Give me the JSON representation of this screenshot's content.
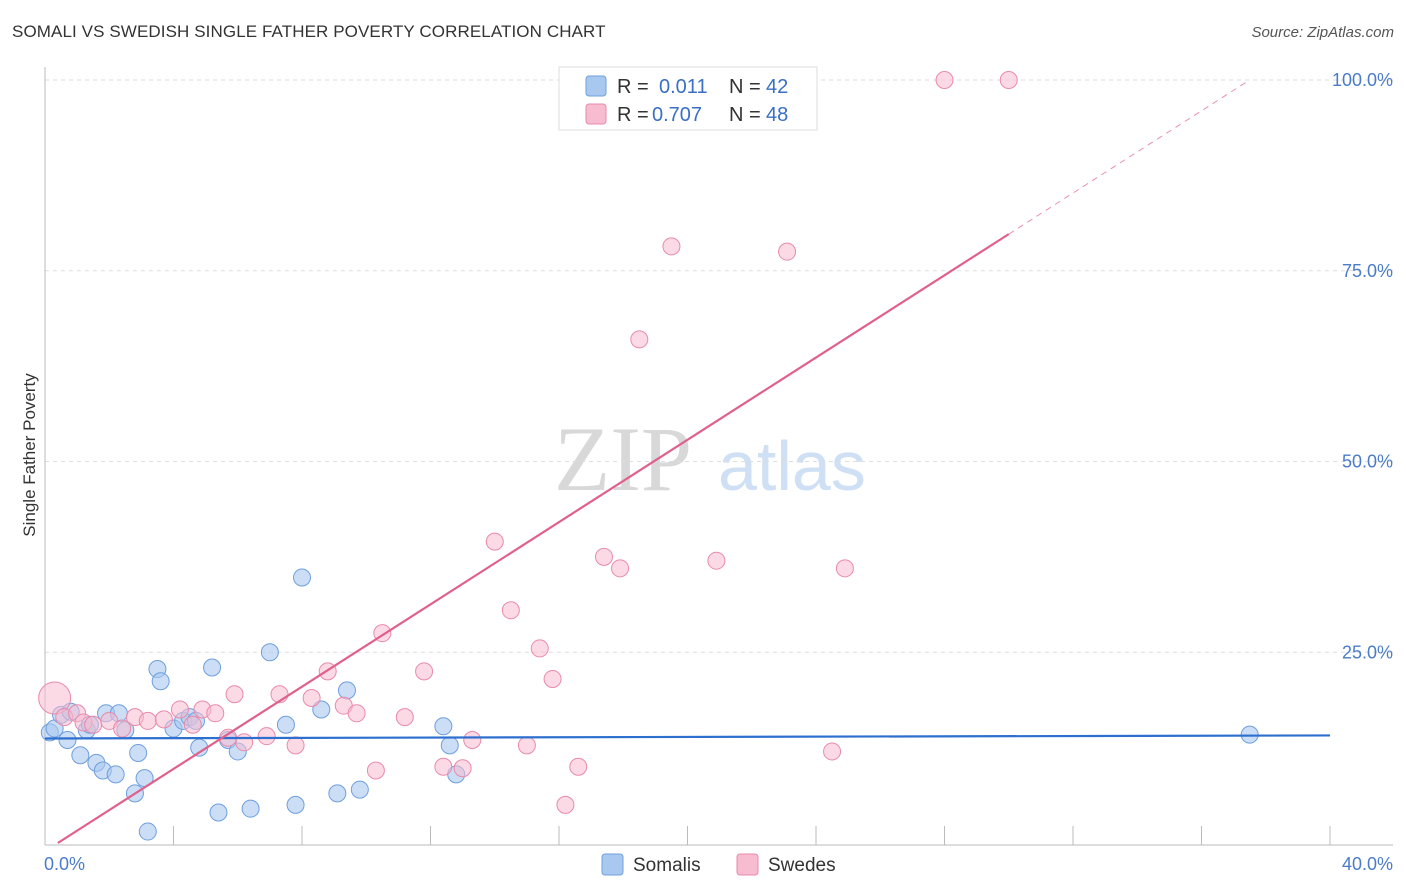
{
  "title": "SOMALI VS SWEDISH SINGLE FATHER POVERTY CORRELATION CHART",
  "source": "Source: ZipAtlas.com",
  "watermark": {
    "zip": "ZIP",
    "atlas": "atlas"
  },
  "colors": {
    "somali_fill": "#a9c8f0",
    "somali_stroke": "#6f9fde",
    "somali_line": "#2c6fcf",
    "swede_fill": "#f7bcd0",
    "swede_stroke": "#e98aab",
    "swede_line": "#e0608c",
    "axis_label": "#4a7cc9",
    "grid": "#dddddd"
  },
  "legend": {
    "somalis": {
      "r_label": "R =",
      "r_value": "0.011",
      "n_label": "N =",
      "n_value": "42"
    },
    "swedes": {
      "r_label": "R =",
      "r_value": "0.707",
      "n_label": "N =",
      "n_value": "48"
    }
  },
  "bottom_legend": {
    "somalis": "Somalis",
    "swedes": "Swedes"
  },
  "chart_data": {
    "type": "scatter",
    "title": "SOMALI VS SWEDISH SINGLE FATHER POVERTY CORRELATION CHART",
    "xlabel": "",
    "ylabel": "Single Father Poverty",
    "xlim": [
      0,
      40
    ],
    "ylim": [
      0,
      100
    ],
    "x_tick_labels": [
      "0.0%",
      "40.0%"
    ],
    "y_ticks": [
      25,
      50,
      75,
      100
    ],
    "y_tick_labels": [
      "25.0%",
      "50.0%",
      "75.0%",
      "100.0%"
    ],
    "legend_position": "top-center",
    "series": [
      {
        "name": "Somalis",
        "r": 0.011,
        "n": 42,
        "trend": {
          "x0": 0,
          "y0": 13.7,
          "x1": 40,
          "y1": 14.1
        },
        "points": [
          [
            0.15,
            14.5
          ],
          [
            0.3,
            15.0
          ],
          [
            0.5,
            16.8
          ],
          [
            0.7,
            13.5
          ],
          [
            0.8,
            17.2
          ],
          [
            1.1,
            11.5
          ],
          [
            1.3,
            14.8
          ],
          [
            1.4,
            15.5
          ],
          [
            1.6,
            10.5
          ],
          [
            1.8,
            9.5
          ],
          [
            1.9,
            17.0
          ],
          [
            2.2,
            9.0
          ],
          [
            2.3,
            17.0
          ],
          [
            2.5,
            14.8
          ],
          [
            2.8,
            6.5
          ],
          [
            2.9,
            11.8
          ],
          [
            3.1,
            8.5
          ],
          [
            3.2,
            1.5
          ],
          [
            3.5,
            22.8
          ],
          [
            3.6,
            21.2
          ],
          [
            4.0,
            15.0
          ],
          [
            4.3,
            16.0
          ],
          [
            4.5,
            16.5
          ],
          [
            4.7,
            16.0
          ],
          [
            4.8,
            12.5
          ],
          [
            5.2,
            23.0
          ],
          [
            5.4,
            4.0
          ],
          [
            5.7,
            13.5
          ],
          [
            6.0,
            12.0
          ],
          [
            6.4,
            4.5
          ],
          [
            7.0,
            25.0
          ],
          [
            7.5,
            15.5
          ],
          [
            7.8,
            5.0
          ],
          [
            8.0,
            34.8
          ],
          [
            8.6,
            17.5
          ],
          [
            9.1,
            6.5
          ],
          [
            9.4,
            20.0
          ],
          [
            9.8,
            7.0
          ],
          [
            12.4,
            15.3
          ],
          [
            12.6,
            12.8
          ],
          [
            12.8,
            9.0
          ],
          [
            37.5,
            14.2
          ]
        ]
      },
      {
        "name": "Swedes",
        "r": 0.707,
        "n": 48,
        "trend": {
          "x0": 0.4,
          "y0": 0,
          "x1": 30.0,
          "y1": 79.8
        },
        "trend_extension": {
          "x0": 30.0,
          "y0": 79.8,
          "x1": 37.5,
          "y1": 100
        },
        "points": [
          [
            0.3,
            19.0
          ],
          [
            0.6,
            16.5
          ],
          [
            1.0,
            17.0
          ],
          [
            1.2,
            15.8
          ],
          [
            1.5,
            15.5
          ],
          [
            2.0,
            16.0
          ],
          [
            2.4,
            15.0
          ],
          [
            2.8,
            16.5
          ],
          [
            3.2,
            16.0
          ],
          [
            3.7,
            16.2
          ],
          [
            4.2,
            17.5
          ],
          [
            4.6,
            15.5
          ],
          [
            4.9,
            17.5
          ],
          [
            5.3,
            17.0
          ],
          [
            5.7,
            13.8
          ],
          [
            5.9,
            19.5
          ],
          [
            6.2,
            13.2
          ],
          [
            6.9,
            14.0
          ],
          [
            7.3,
            19.5
          ],
          [
            7.8,
            12.8
          ],
          [
            8.3,
            19.0
          ],
          [
            8.8,
            22.5
          ],
          [
            9.3,
            18.0
          ],
          [
            9.7,
            17.0
          ],
          [
            10.3,
            9.5
          ],
          [
            10.5,
            27.5
          ],
          [
            11.2,
            16.5
          ],
          [
            11.8,
            22.5
          ],
          [
            12.4,
            10.0
          ],
          [
            13.0,
            9.8
          ],
          [
            13.3,
            13.5
          ],
          [
            14.0,
            39.5
          ],
          [
            14.5,
            30.5
          ],
          [
            15.0,
            12.8
          ],
          [
            15.4,
            25.5
          ],
          [
            15.8,
            21.5
          ],
          [
            16.2,
            5.0
          ],
          [
            16.6,
            10.0
          ],
          [
            17.4,
            37.5
          ],
          [
            17.9,
            36.0
          ],
          [
            18.5,
            66.0
          ],
          [
            19.5,
            78.2
          ],
          [
            20.9,
            37.0
          ],
          [
            23.1,
            77.5
          ],
          [
            24.5,
            12.0
          ],
          [
            24.9,
            36.0
          ],
          [
            28.0,
            100.0
          ],
          [
            30.0,
            100.0
          ]
        ]
      }
    ]
  }
}
